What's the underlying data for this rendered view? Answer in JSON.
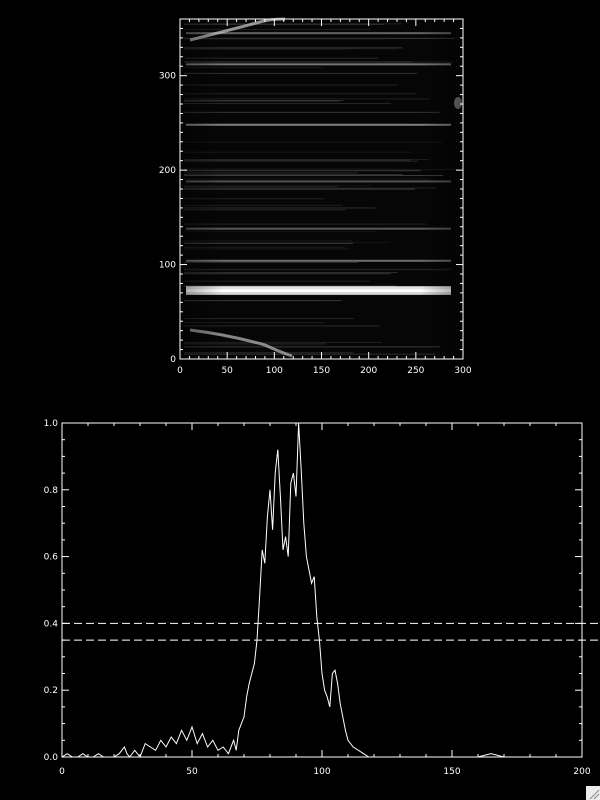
{
  "chart_data": [
    {
      "type": "heatmap",
      "title": "",
      "xlabel": "",
      "ylabel": "",
      "xlim": [
        0,
        300
      ],
      "ylim": [
        0,
        360
      ],
      "x_ticks": [
        "0",
        "50",
        "100",
        "150",
        "200",
        "250",
        "300"
      ],
      "y_ticks": [
        "0",
        "100",
        "200",
        "300"
      ],
      "colormap": "grayscale",
      "bright_bands_y": [
        {
          "y": 69.5,
          "intensity": 0.8
        },
        {
          "y": 72.5,
          "intensity": 1.0
        },
        {
          "y": 75.5,
          "intensity": 0.85
        },
        {
          "y": 104,
          "intensity": 0.25
        },
        {
          "y": 138,
          "intensity": 0.15
        },
        {
          "y": 188,
          "intensity": 0.12
        },
        {
          "y": 248,
          "intensity": 0.35
        },
        {
          "y": 312,
          "intensity": 0.3
        },
        {
          "y": 345,
          "intensity": 0.2
        }
      ]
    },
    {
      "type": "line",
      "title": "",
      "xlabel": "",
      "ylabel": "",
      "xlim": [
        0,
        200
      ],
      "ylim": [
        0,
        1.0
      ],
      "x_ticks": [
        "0",
        "50",
        "100",
        "150",
        "200"
      ],
      "y_ticks": [
        "0.0",
        "0.2",
        "0.4",
        "0.6",
        "0.8",
        "1.0"
      ],
      "reference_lines_y": [
        0.4,
        0.35
      ],
      "series": [
        {
          "x": [
            0,
            2,
            4,
            6,
            8,
            10,
            12,
            14,
            16,
            18,
            20,
            22,
            24,
            25,
            26,
            28,
            30,
            32,
            34,
            36,
            38,
            40,
            42,
            44,
            46,
            48,
            50,
            52,
            54,
            56,
            58,
            60,
            62,
            64,
            66,
            67,
            68,
            70,
            71,
            72,
            73,
            74,
            75,
            76,
            77,
            78,
            79,
            80,
            81,
            82,
            83,
            84,
            85,
            86,
            87,
            88,
            89,
            90,
            91,
            92,
            93,
            94,
            95,
            96,
            97,
            98,
            99,
            100,
            101,
            102,
            103,
            104,
            105,
            106,
            107,
            108,
            109,
            110,
            112,
            114,
            116,
            118,
            120,
            124,
            130,
            140,
            150,
            160,
            165,
            170,
            180,
            190,
            200
          ],
          "y": [
            0.0,
            0.01,
            0.0,
            0.0,
            0.01,
            0.0,
            0.0,
            0.01,
            0.0,
            0.0,
            0.0,
            0.01,
            0.03,
            0.01,
            0.0,
            0.02,
            0.0,
            0.04,
            0.03,
            0.02,
            0.05,
            0.03,
            0.06,
            0.04,
            0.08,
            0.05,
            0.09,
            0.04,
            0.07,
            0.03,
            0.05,
            0.02,
            0.03,
            0.01,
            0.05,
            0.02,
            0.08,
            0.12,
            0.18,
            0.22,
            0.25,
            0.28,
            0.35,
            0.48,
            0.62,
            0.58,
            0.72,
            0.8,
            0.68,
            0.85,
            0.92,
            0.78,
            0.62,
            0.66,
            0.6,
            0.82,
            0.85,
            0.78,
            1.0,
            0.86,
            0.7,
            0.6,
            0.56,
            0.52,
            0.54,
            0.42,
            0.35,
            0.25,
            0.2,
            0.18,
            0.15,
            0.25,
            0.26,
            0.22,
            0.16,
            0.12,
            0.08,
            0.05,
            0.03,
            0.02,
            0.01,
            0.0,
            0.0,
            0.0,
            0.0,
            0.0,
            0.0,
            0.0,
            0.01,
            0.0,
            0.0,
            0.0,
            0.0
          ]
        }
      ]
    }
  ],
  "icons": {
    "resize": "resize-grip-icon"
  },
  "colors": {
    "background": "#000000",
    "foreground": "#ffffff",
    "grip": "#ececec"
  }
}
